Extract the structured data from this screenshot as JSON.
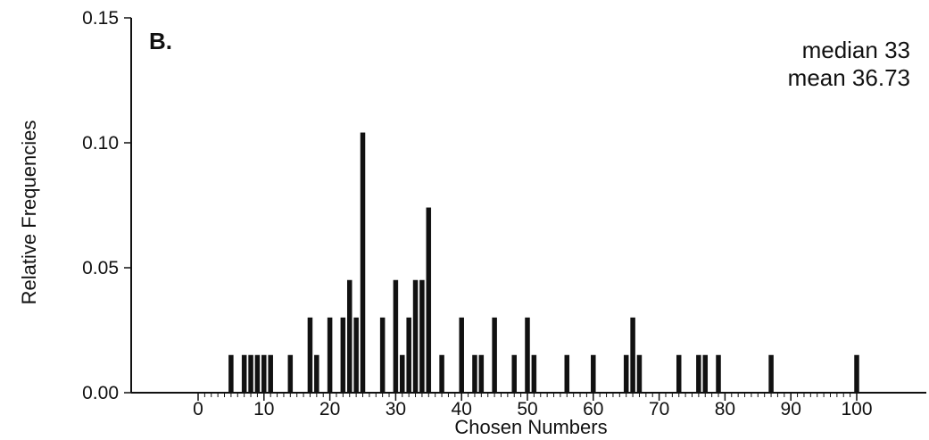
{
  "chart_data": {
    "type": "bar",
    "panel_label": "B.",
    "xlabel": "Chosen Numbers",
    "ylabel": "Relative Frequencies",
    "xlim": [
      -13,
      109
    ],
    "ylim": [
      0,
      0.15
    ],
    "x_ticks": [
      0,
      10,
      20,
      30,
      40,
      50,
      60,
      70,
      80,
      90,
      100
    ],
    "x_tick_labels": [
      "0",
      "10",
      "20",
      "30",
      "40",
      "50",
      "60",
      "70",
      "80",
      "90",
      "100"
    ],
    "y_ticks": [
      0,
      0.05,
      0.1,
      0.15
    ],
    "y_tick_labels": [
      "0.00",
      "0.05",
      "0.10",
      "0.15"
    ],
    "annotations": [
      "median 33",
      "mean 36.73"
    ],
    "grid": false,
    "bar_color": "#111111",
    "x": [
      5,
      7,
      8,
      9,
      10,
      11,
      14,
      17,
      18,
      20,
      22,
      23,
      24,
      25,
      28,
      30,
      31,
      32,
      33,
      34,
      35,
      37,
      40,
      42,
      43,
      45,
      48,
      50,
      51,
      56,
      60,
      65,
      66,
      67,
      73,
      76,
      77,
      79,
      87,
      100
    ],
    "values": [
      0.015,
      0.015,
      0.015,
      0.015,
      0.015,
      0.015,
      0.015,
      0.03,
      0.015,
      0.03,
      0.03,
      0.045,
      0.03,
      0.104,
      0.03,
      0.045,
      0.015,
      0.03,
      0.045,
      0.045,
      0.074,
      0.015,
      0.03,
      0.015,
      0.015,
      0.03,
      0.015,
      0.03,
      0.015,
      0.015,
      0.015,
      0.015,
      0.03,
      0.015,
      0.015,
      0.015,
      0.015,
      0.015,
      0.015,
      0.015
    ]
  }
}
